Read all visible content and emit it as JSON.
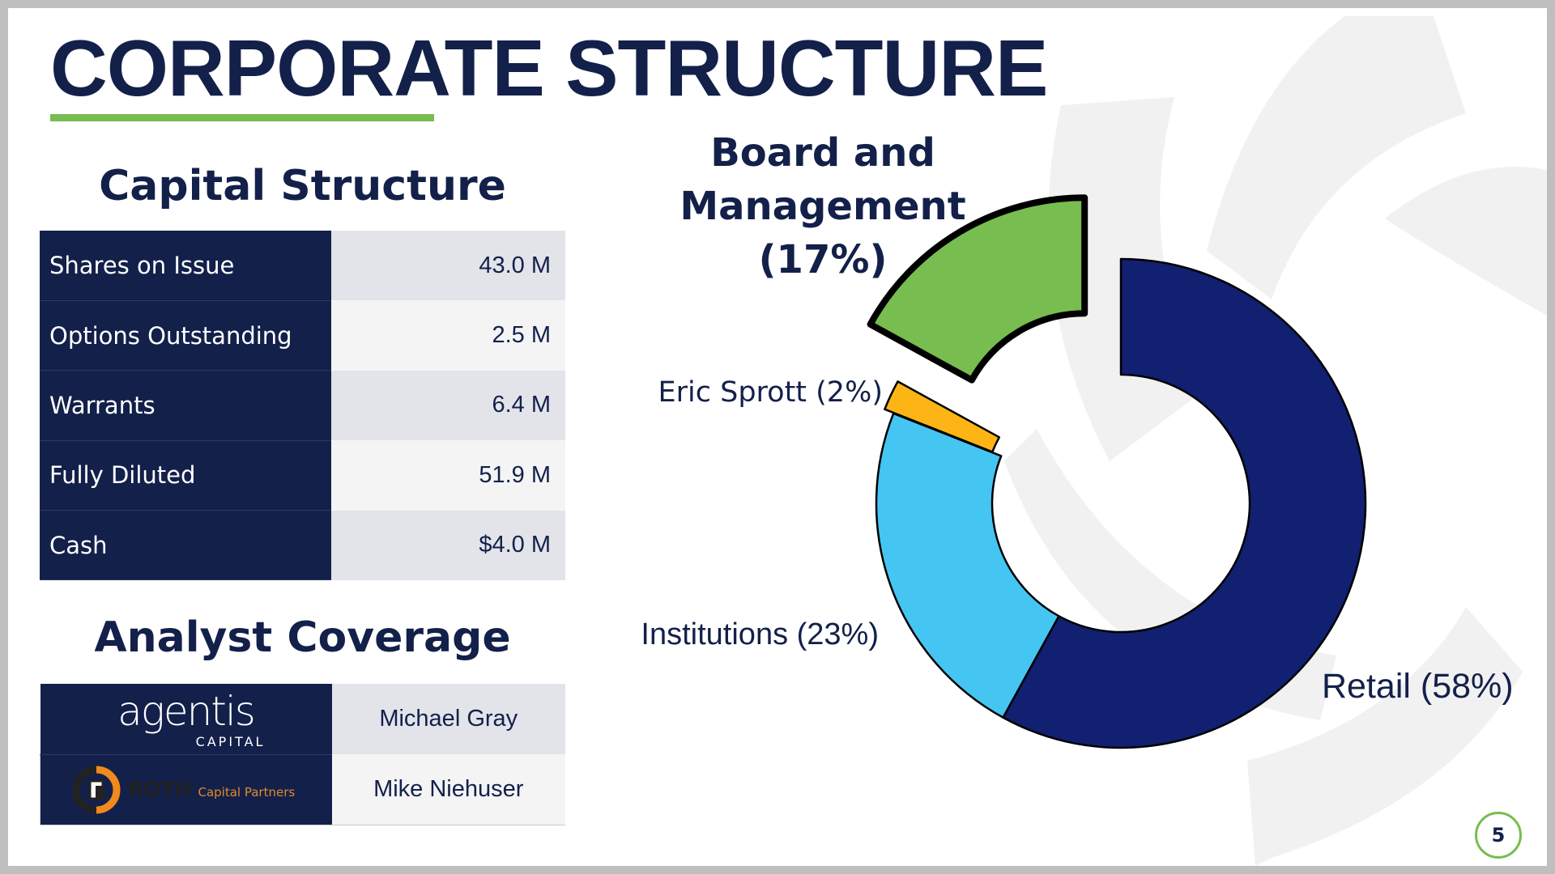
{
  "title": "CORPORATE STRUCTURE",
  "capital_structure": {
    "heading": "Capital Structure",
    "rows": [
      {
        "label": "Shares on Issue",
        "value": "43.0 M"
      },
      {
        "label": "Options Outstanding",
        "value": "2.5 M"
      },
      {
        "label": "Warrants",
        "value": "6.4 M"
      },
      {
        "label": "Fully Diluted",
        "value": "51.9 M"
      },
      {
        "label": "Cash",
        "value": "$4.0 M"
      }
    ]
  },
  "analyst_coverage": {
    "heading": "Analyst Coverage",
    "rows": [
      {
        "firm": "agentis",
        "firm_sub": "CAPITAL",
        "analyst": "Michael Gray"
      },
      {
        "firm": "ROTH",
        "firm_sub": "Capital Partners",
        "analyst": "Mike Niehuser"
      }
    ]
  },
  "chart_data": {
    "type": "pie",
    "title": "",
    "labels": {
      "board": "Board and|Management|(17%)",
      "eric": "Eric Sprott (2%)",
      "inst": "Institutions (23%)",
      "retail": "Retail (58%)"
    },
    "slices": [
      {
        "key": "retail",
        "name": "Retail",
        "value": 58,
        "color": "#112070",
        "exploded": false
      },
      {
        "key": "inst",
        "name": "Institutions",
        "value": 23,
        "color": "#45c5f2",
        "exploded": false
      },
      {
        "key": "eric",
        "name": "Eric Sprott",
        "value": 2,
        "color": "#fdb515",
        "exploded": true
      },
      {
        "key": "board",
        "name": "Board and Management",
        "value": 17,
        "color": "#77bd4f",
        "exploded": true
      }
    ]
  },
  "page_number": "5",
  "colors": {
    "navy": "#13204a",
    "green": "#77bd4f"
  }
}
